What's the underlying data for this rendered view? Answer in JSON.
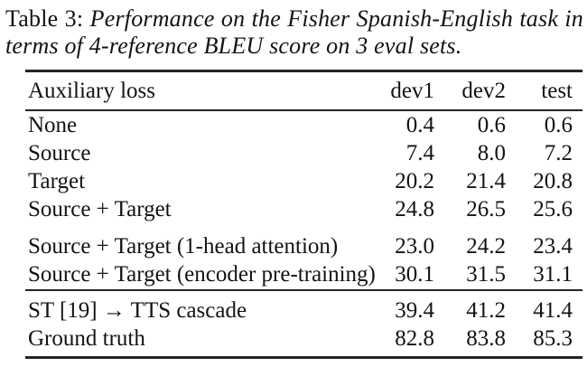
{
  "caption": {
    "label": "Table 3:",
    "line1": "Performance on the Fisher Spanish-English task in",
    "line2": "terms of 4-reference BLEU score on 3 eval sets."
  },
  "table": {
    "header": [
      "Auxiliary loss",
      "dev1",
      "dev2",
      "test"
    ],
    "groups": [
      {
        "rows": [
          {
            "label": "None",
            "values": [
              "0.4",
              "0.6",
              "0.6"
            ]
          },
          {
            "label": "Source",
            "values": [
              "7.4",
              "8.0",
              "7.2"
            ]
          },
          {
            "label": "Target",
            "values": [
              "20.2",
              "21.4",
              "20.8"
            ]
          },
          {
            "label": "Source + Target",
            "values": [
              "24.8",
              "26.5",
              "25.6"
            ]
          }
        ]
      },
      {
        "rows": [
          {
            "label": "Source + Target (1-head attention)",
            "values": [
              "23.0",
              "24.2",
              "23.4"
            ]
          },
          {
            "label": "Source + Target (encoder pre-training)",
            "values": [
              "30.1",
              "31.5",
              "31.1"
            ]
          }
        ]
      },
      {
        "rows": [
          {
            "label": "ST [19] → TTS cascade",
            "values": [
              "39.4",
              "41.2",
              "41.4"
            ]
          },
          {
            "label": "Ground truth",
            "values": [
              "82.8",
              "83.8",
              "85.3"
            ]
          }
        ]
      }
    ]
  },
  "colors": {
    "background": "#ffffff",
    "text": "#131313",
    "rule": "#242424"
  }
}
